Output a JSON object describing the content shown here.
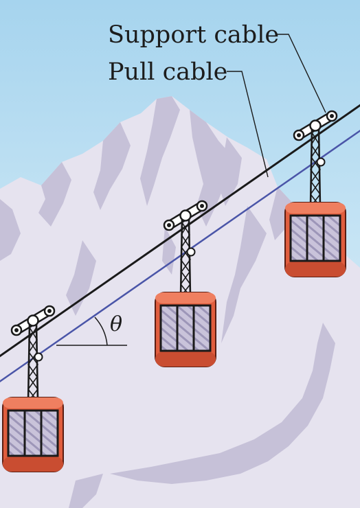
{
  "labels": {
    "support_cable": "Support cable",
    "pull_cable": "Pull cable",
    "angle": "θ"
  },
  "colors": {
    "sky_top": "#a9d6ee",
    "sky_bottom": "#d8edf7",
    "mountain_light": "#e5e2ee",
    "mountain_shadow": "#c4bfd6",
    "support_cable": "#1a1a1a",
    "pull_cable": "#4a55a8",
    "car_body": "#e05d3e",
    "car_outline": "#5a1d12",
    "window": "#bfb8d2"
  },
  "gondolas": [
    {
      "name": "gondola-left"
    },
    {
      "name": "gondola-middle"
    },
    {
      "name": "gondola-right"
    }
  ]
}
